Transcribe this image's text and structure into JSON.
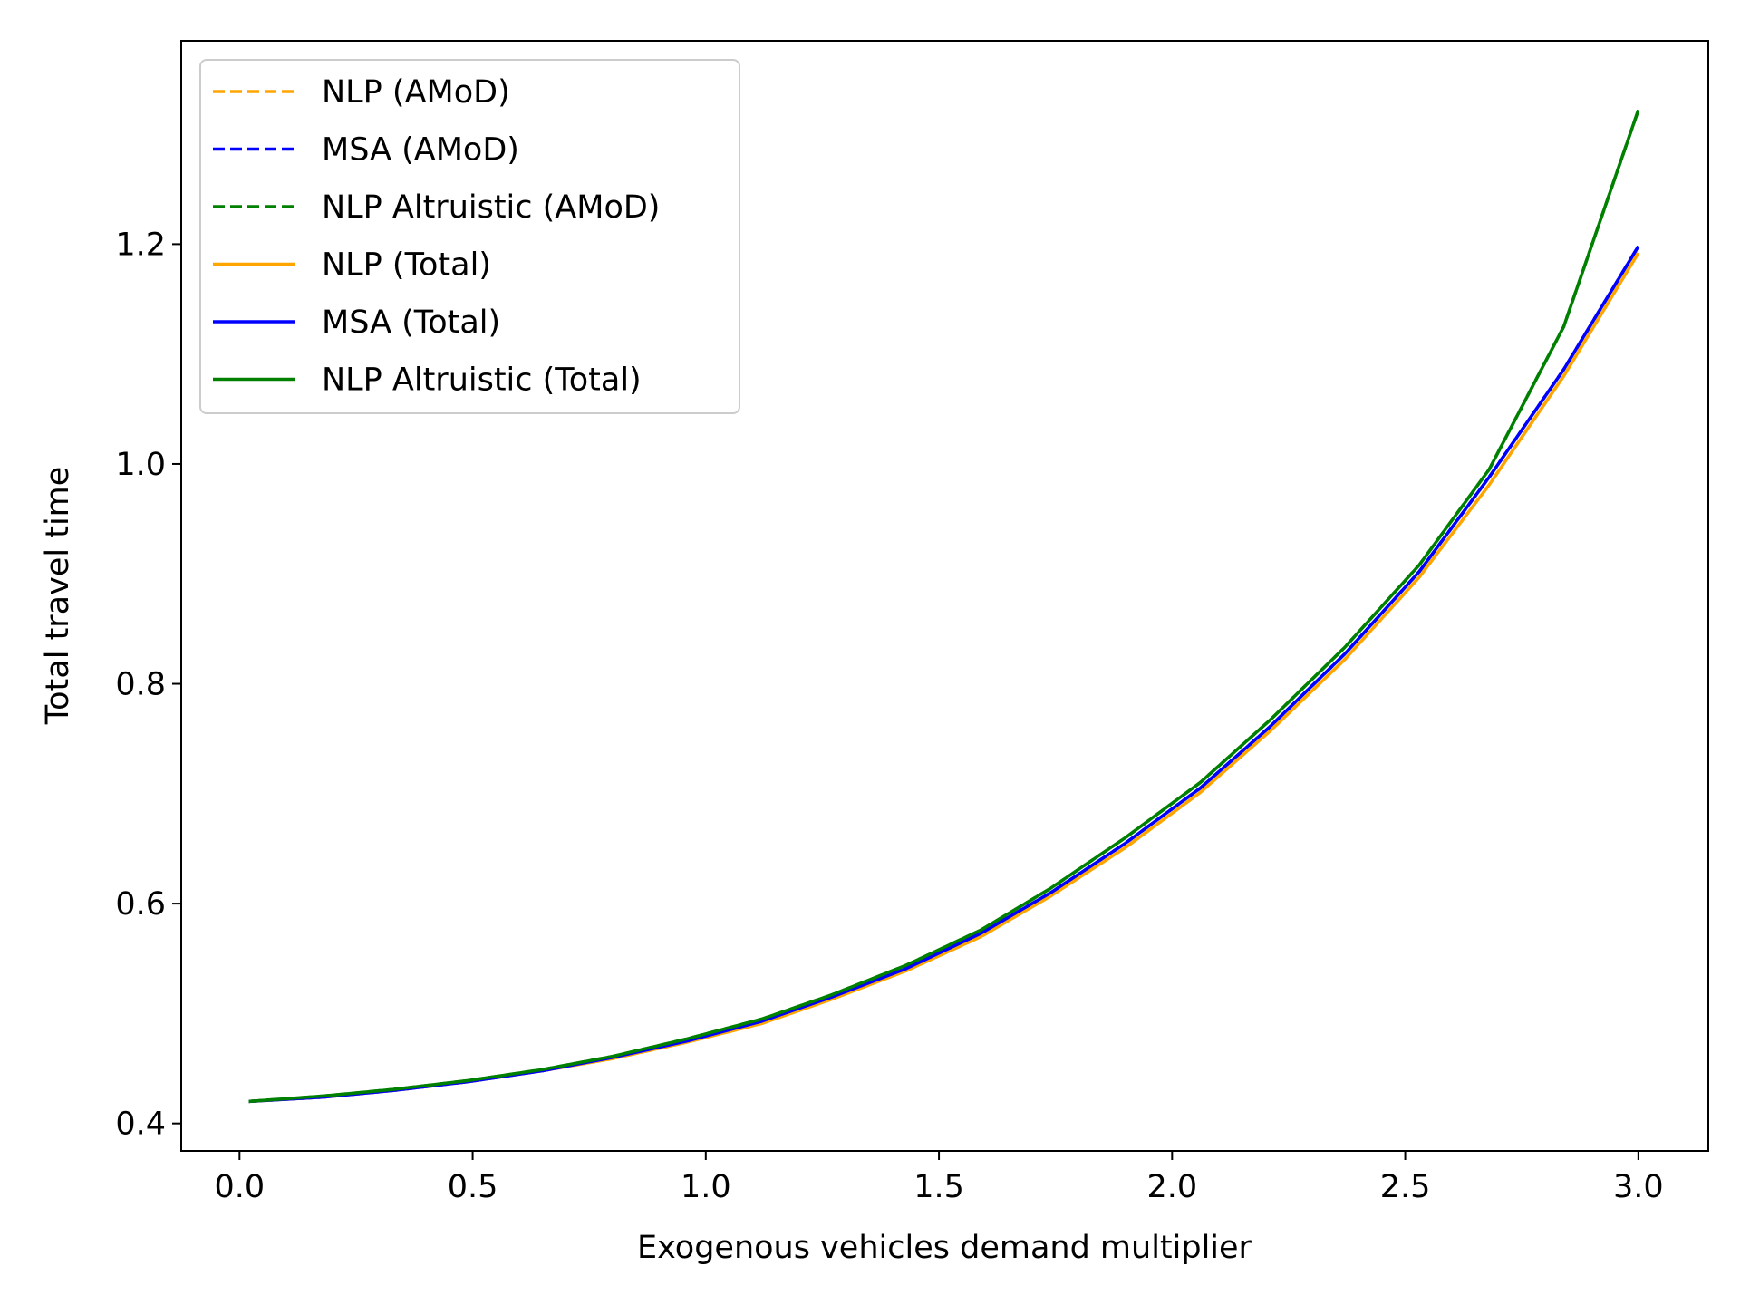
{
  "chart_data": {
    "type": "line",
    "title": "",
    "xlabel": "Exogenous vehicles demand multiplier",
    "ylabel": "Total travel time",
    "xlim": [
      -0.125,
      3.15
    ],
    "ylim": [
      0.375,
      1.385
    ],
    "xticks": [
      0.0,
      0.5,
      1.0,
      1.5,
      2.0,
      2.5,
      3.0
    ],
    "xtick_labels": [
      "0.0",
      "0.5",
      "1.0",
      "1.5",
      "2.0",
      "2.5",
      "3.0"
    ],
    "yticks": [
      0.4,
      0.6,
      0.8,
      1.0,
      1.2
    ],
    "ytick_labels": [
      "0.4",
      "0.6",
      "0.8",
      "1.0",
      "1.2"
    ],
    "grid": false,
    "legend_position": "top-left",
    "x": [
      0.02,
      0.18,
      0.33,
      0.49,
      0.65,
      0.8,
      0.96,
      1.12,
      1.27,
      1.43,
      1.59,
      1.74,
      1.9,
      2.06,
      2.21,
      2.37,
      2.53,
      2.68,
      2.84,
      3.0
    ],
    "series": [
      {
        "name": "NLP (AMoD)",
        "color": "#ffa500",
        "style": "dashed",
        "values": [
          0.42,
          0.424,
          0.43,
          0.438,
          0.448,
          0.459,
          0.474,
          0.491,
          0.513,
          0.539,
          0.57,
          0.607,
          0.651,
          0.701,
          0.757,
          0.822,
          0.897,
          0.981,
          1.08,
          1.192
        ]
      },
      {
        "name": "MSA (AMoD)",
        "color": "#0000ff",
        "style": "dashed",
        "values": [
          0.42,
          0.424,
          0.43,
          0.438,
          0.448,
          0.46,
          0.475,
          0.493,
          0.515,
          0.541,
          0.573,
          0.61,
          0.655,
          0.705,
          0.761,
          0.827,
          0.902,
          0.988,
          1.086,
          1.198
        ]
      },
      {
        "name": "NLP Altruistic (AMoD)",
        "color": "#008000",
        "style": "dashed",
        "values": [
          0.42,
          0.425,
          0.431,
          0.439,
          0.449,
          0.461,
          0.477,
          0.495,
          0.517,
          0.544,
          0.576,
          0.614,
          0.66,
          0.71,
          0.767,
          0.833,
          0.908,
          0.995,
          1.125,
          1.322
        ]
      },
      {
        "name": "NLP (Total)",
        "color": "#ffa500",
        "style": "solid",
        "values": [
          0.42,
          0.424,
          0.43,
          0.438,
          0.448,
          0.459,
          0.474,
          0.491,
          0.513,
          0.539,
          0.57,
          0.607,
          0.651,
          0.701,
          0.757,
          0.822,
          0.897,
          0.981,
          1.08,
          1.192
        ]
      },
      {
        "name": "MSA (Total)",
        "color": "#0000ff",
        "style": "solid",
        "values": [
          0.42,
          0.424,
          0.43,
          0.438,
          0.448,
          0.46,
          0.475,
          0.493,
          0.515,
          0.541,
          0.573,
          0.61,
          0.655,
          0.705,
          0.761,
          0.827,
          0.902,
          0.988,
          1.086,
          1.198
        ]
      },
      {
        "name": "NLP Altruistic (Total)",
        "color": "#008000",
        "style": "solid",
        "values": [
          0.42,
          0.425,
          0.431,
          0.439,
          0.449,
          0.461,
          0.477,
          0.495,
          0.517,
          0.544,
          0.576,
          0.614,
          0.66,
          0.71,
          0.767,
          0.833,
          0.908,
          0.995,
          1.125,
          1.322
        ]
      }
    ]
  }
}
